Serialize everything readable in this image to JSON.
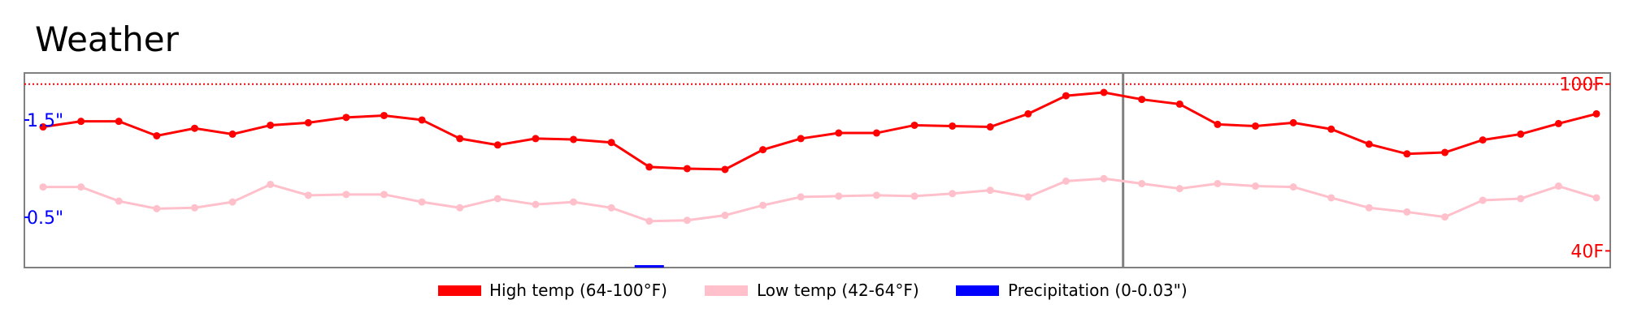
{
  "chart_data": {
    "type": "line",
    "title": "Weather",
    "x": [
      1,
      2,
      3,
      4,
      5,
      6,
      7,
      8,
      9,
      10,
      11,
      12,
      13,
      14,
      15,
      16,
      17,
      18,
      19,
      20,
      21,
      22,
      23,
      24,
      25,
      26,
      27,
      28,
      29,
      30,
      31,
      32,
      33,
      34,
      35,
      36,
      37,
      38,
      39,
      40,
      41,
      42
    ],
    "series": [
      {
        "name": "High temp (64-100°F)",
        "color": "#ff0000",
        "axis": "right",
        "values": [
          84.6,
          86.6,
          86.6,
          81.4,
          84.1,
          82.0,
          85.2,
          86.1,
          88.0,
          88.7,
          87.1,
          80.4,
          78.1,
          80.4,
          80.1,
          79.0,
          70.2,
          69.6,
          69.3,
          76.4,
          80.4,
          82.4,
          82.4,
          85.2,
          84.9,
          84.6,
          89.3,
          95.8,
          97.0,
          94.5,
          92.8,
          85.5,
          84.9,
          86.1,
          83.8,
          78.4,
          74.9,
          75.4,
          79.9,
          82.0,
          85.8,
          89.3
        ]
      },
      {
        "name": "Low temp (42-64°F)",
        "color": "#ffc0cb",
        "axis": "right",
        "values": [
          63.0,
          63.0,
          57.9,
          55.2,
          55.5,
          57.6,
          63.9,
          60.0,
          60.3,
          60.3,
          57.6,
          55.5,
          58.8,
          56.7,
          57.6,
          55.5,
          50.7,
          51.0,
          52.8,
          56.4,
          59.4,
          59.7,
          60.0,
          59.7,
          60.6,
          61.8,
          59.4,
          65.1,
          66.0,
          64.2,
          62.4,
          64.2,
          63.3,
          63.0,
          59.1,
          55.5,
          54.0,
          52.2,
          58.2,
          58.8,
          63.3,
          59.1
        ]
      },
      {
        "name": "Precipitation (0-0.03\")",
        "color": "#0000ff",
        "axis": "left",
        "values": [
          0,
          0,
          0,
          0,
          0,
          0,
          0,
          0,
          0,
          0,
          0,
          0,
          0,
          0,
          0,
          0,
          0.03,
          0,
          0,
          0,
          0,
          0,
          0,
          0,
          0,
          0,
          0,
          0,
          0,
          0,
          0,
          0,
          0,
          0,
          0,
          0,
          0,
          0,
          0,
          0,
          0,
          0
        ]
      }
    ],
    "y_left": {
      "ticks": [
        "1.5\"",
        "0.5\""
      ]
    },
    "y_right": {
      "ticks": [
        "100F",
        "40F"
      ]
    },
    "ylim_right": [
      34,
      104
    ],
    "reference_line": {
      "value": 100,
      "style": "dotted",
      "color": "#ff0000"
    },
    "current_marker_index": 29,
    "legend_position": "bottom",
    "grid": false
  }
}
